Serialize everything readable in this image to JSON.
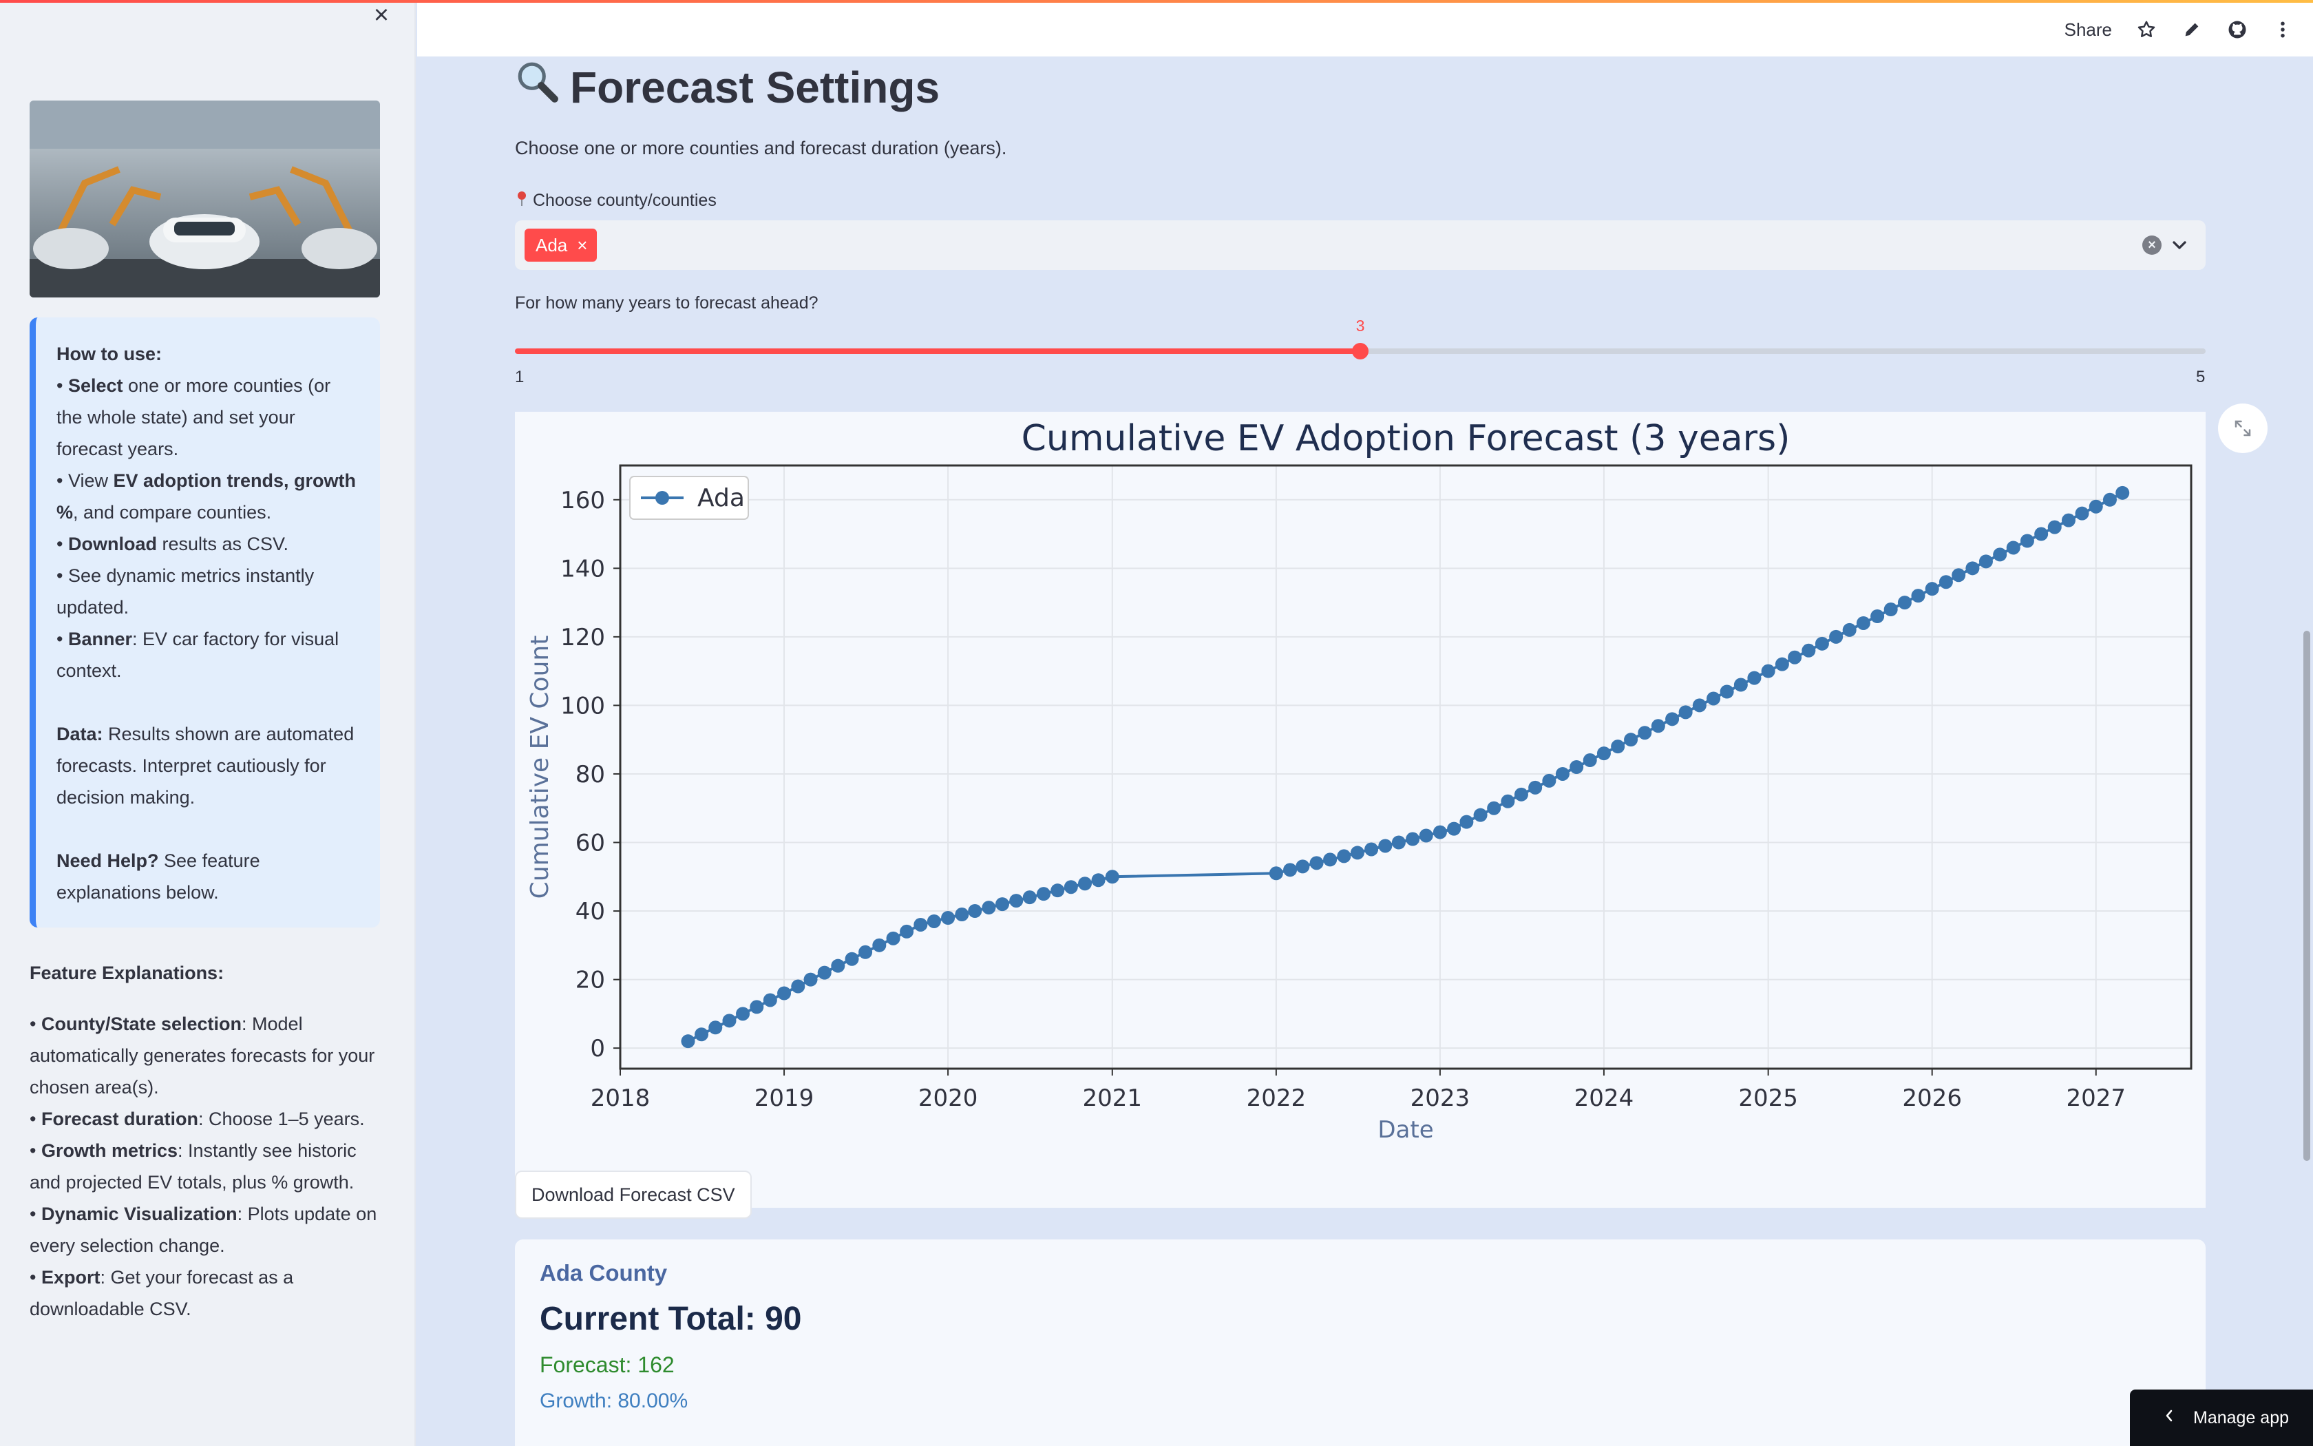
{
  "sidebar": {
    "close_icon": "close-icon",
    "banner_alt": "EV car factory",
    "howto": {
      "heading": "How to use:",
      "items": [
        {
          "bold": "Select",
          "text": " one or more counties (or the whole state) and set your forecast years."
        },
        {
          "pre": "View ",
          "bold": "EV adoption trends, growth %",
          "text": ", and compare counties."
        },
        {
          "bold": "Download",
          "text": " results as CSV."
        },
        {
          "pre": "See dynamic metrics instantly updated.",
          "bold": "",
          "text": ""
        },
        {
          "bold": "Banner",
          "text": ": EV car factory for visual context."
        }
      ],
      "data_label": "Data:",
      "data_text": " Results shown are automated forecasts. Interpret cautiously for decision making.",
      "help_label": "Need Help?",
      "help_text": " See feature explanations below."
    },
    "features": {
      "title": "Feature Explanations:",
      "items": [
        {
          "bold": "County/State selection",
          "text": ": Model automatically generates forecasts for your chosen area(s)."
        },
        {
          "bold": "Forecast duration",
          "text": ": Choose 1–5 years."
        },
        {
          "bold": "Growth metrics",
          "text": ": Instantly see historic and projected EV totals, plus % growth."
        },
        {
          "bold": "Dynamic Visualization",
          "text": ": Plots update on every selection change."
        },
        {
          "bold": "Export",
          "text": ": Get your forecast as a downloadable CSV."
        }
      ]
    }
  },
  "header": {
    "share_label": "Share",
    "icons": [
      "star-icon",
      "edit-icon",
      "github-icon",
      "more-icon"
    ]
  },
  "main": {
    "title": "Forecast Settings",
    "title_icon": "magnifier-icon",
    "subtitle": "Choose one or more counties and forecast duration (years).",
    "county_label": "Choose county/counties",
    "county_label_icon": "pin-icon",
    "selected_county": "Ada",
    "years_label": "For how many years to forecast ahead?",
    "slider": {
      "min": "1",
      "max": "5",
      "value": "3"
    },
    "download_label": "Download Forecast CSV",
    "card": {
      "county": "Ada County",
      "current_total": "Current Total: 90",
      "forecast": "Forecast: 162",
      "growth": "Growth: 80.00%"
    },
    "manage_label": "Manage app"
  },
  "colors": {
    "accent": "#ff4b4b",
    "series": "#3a76b0",
    "info_border": "#3d82f5"
  },
  "chart_data": {
    "type": "line",
    "title": "Cumulative EV Adoption Forecast (3 years)",
    "xlabel": "Date",
    "ylabel": "Cumulative EV Count",
    "xlim": [
      "2018-01-01",
      "2027-08-01"
    ],
    "ylim": [
      -6,
      170
    ],
    "xticks": [
      "2018",
      "2019",
      "2020",
      "2021",
      "2022",
      "2023",
      "2024",
      "2025",
      "2026",
      "2027"
    ],
    "yticks": [
      0,
      20,
      40,
      60,
      80,
      100,
      120,
      140,
      160
    ],
    "grid": true,
    "legend": "top-left",
    "series": [
      {
        "name": "Ada",
        "x": [
          "2018-06",
          "2018-07",
          "2018-08",
          "2018-09",
          "2018-10",
          "2018-11",
          "2018-12",
          "2019-01",
          "2019-02",
          "2019-03",
          "2019-04",
          "2019-05",
          "2019-06",
          "2019-07",
          "2019-08",
          "2019-09",
          "2019-10",
          "2019-11",
          "2019-12",
          "2020-01",
          "2020-02",
          "2020-03",
          "2020-04",
          "2020-05",
          "2020-06",
          "2020-07",
          "2020-08",
          "2020-09",
          "2020-10",
          "2020-11",
          "2020-12",
          "2021-01",
          "2022-01",
          "2022-02",
          "2022-03",
          "2022-04",
          "2022-05",
          "2022-06",
          "2022-07",
          "2022-08",
          "2022-09",
          "2022-10",
          "2022-11",
          "2022-12",
          "2023-01",
          "2023-02",
          "2023-03",
          "2023-04",
          "2023-05",
          "2023-06",
          "2023-07",
          "2023-08",
          "2023-09",
          "2023-10",
          "2023-11",
          "2023-12",
          "2024-01",
          "2024-02",
          "2024-03",
          "2024-04",
          "2024-05",
          "2024-06",
          "2024-07",
          "2024-08",
          "2024-09",
          "2024-10",
          "2024-11",
          "2024-12",
          "2025-01",
          "2025-02",
          "2025-03",
          "2025-04",
          "2025-05",
          "2025-06",
          "2025-07",
          "2025-08",
          "2025-09",
          "2025-10",
          "2025-11",
          "2025-12",
          "2026-01",
          "2026-02",
          "2026-03",
          "2026-04",
          "2026-05",
          "2026-06",
          "2026-07",
          "2026-08",
          "2026-09",
          "2026-10",
          "2026-11",
          "2026-12",
          "2027-01",
          "2027-02",
          "2027-03"
        ],
        "values": [
          2,
          4,
          6,
          8,
          10,
          12,
          14,
          16,
          18,
          20,
          22,
          24,
          26,
          28,
          30,
          32,
          34,
          36,
          37,
          38,
          39,
          40,
          41,
          42,
          43,
          44,
          45,
          46,
          47,
          48,
          49,
          50,
          51,
          52,
          53,
          54,
          55,
          56,
          57,
          58,
          59,
          60,
          61,
          62,
          63,
          64,
          66,
          68,
          70,
          72,
          74,
          76,
          78,
          80,
          82,
          84,
          86,
          88,
          90,
          92,
          94,
          96,
          98,
          100,
          102,
          104,
          106,
          108,
          110,
          112,
          114,
          116,
          118,
          120,
          122,
          124,
          126,
          128,
          130,
          132,
          134,
          136,
          138,
          140,
          142,
          144,
          146,
          148,
          150,
          152,
          154,
          156,
          158,
          160,
          162
        ]
      }
    ]
  }
}
